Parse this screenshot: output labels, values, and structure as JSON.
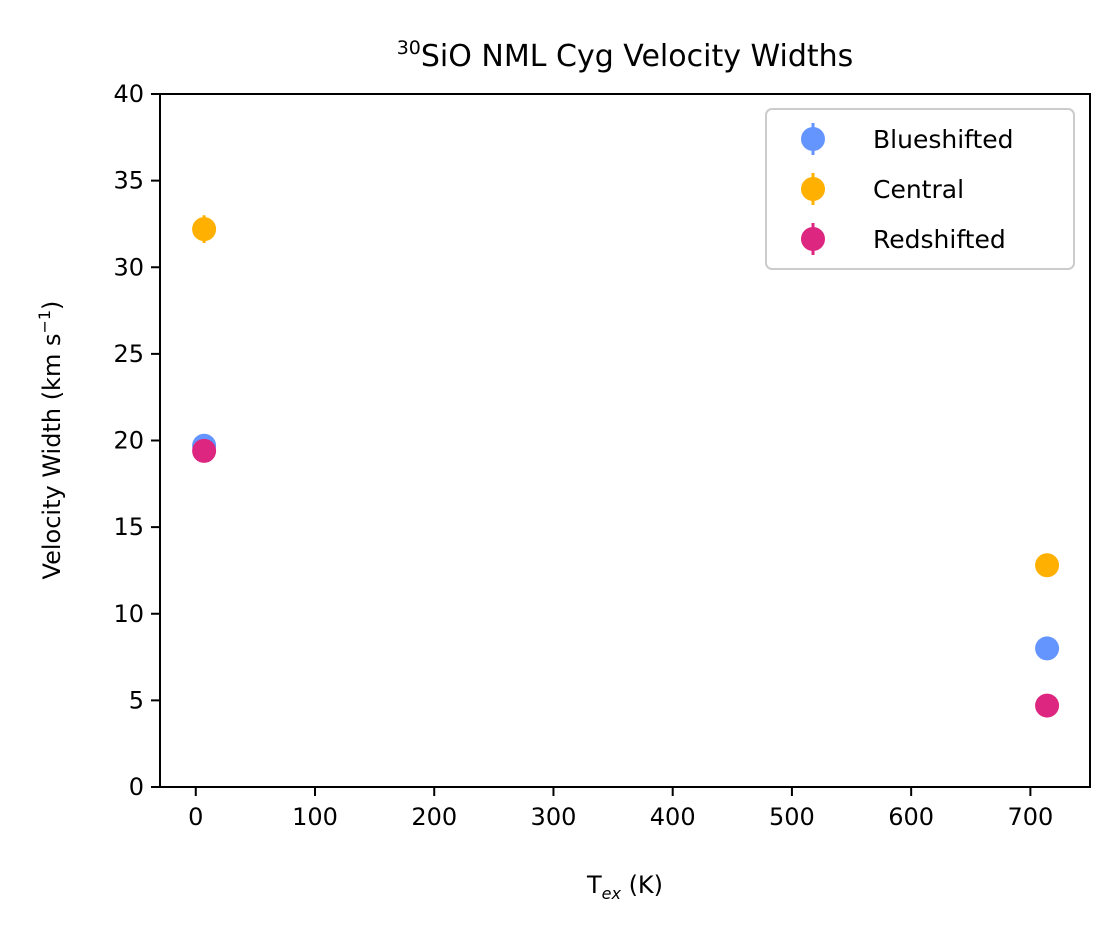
{
  "chart_data": {
    "type": "scatter",
    "title_sup": "30",
    "title_main": "SiO NML Cyg Velocity Widths",
    "xlabel_main": "T",
    "xlabel_sub": "ex",
    "xlabel_unit": " (K)",
    "ylabel_main": "Velocity Width (km s",
    "ylabel_sup": "−1",
    "ylabel_close": ")",
    "xlim": [
      -30,
      750
    ],
    "ylim": [
      0,
      40
    ],
    "xticks": [
      0,
      100,
      200,
      300,
      400,
      500,
      600,
      700
    ],
    "yticks": [
      0,
      5,
      10,
      15,
      20,
      25,
      30,
      35,
      40
    ],
    "legend_position": "top-right",
    "series": [
      {
        "name": "Blueshifted",
        "color": "#6495ff",
        "points": [
          {
            "x": 7,
            "y": 19.7,
            "err": 0.4
          },
          {
            "x": 714,
            "y": 8.0,
            "err": 0.3
          }
        ]
      },
      {
        "name": "Central",
        "color": "#ffb000",
        "points": [
          {
            "x": 7,
            "y": 32.2,
            "err": 0.8
          },
          {
            "x": 714,
            "y": 12.8,
            "err": 0.2
          }
        ]
      },
      {
        "name": "Redshifted",
        "color": "#dc267f",
        "points": [
          {
            "x": 7,
            "y": 19.4,
            "err": 0.3
          },
          {
            "x": 714,
            "y": 4.7,
            "err": 0.2
          }
        ]
      }
    ]
  }
}
